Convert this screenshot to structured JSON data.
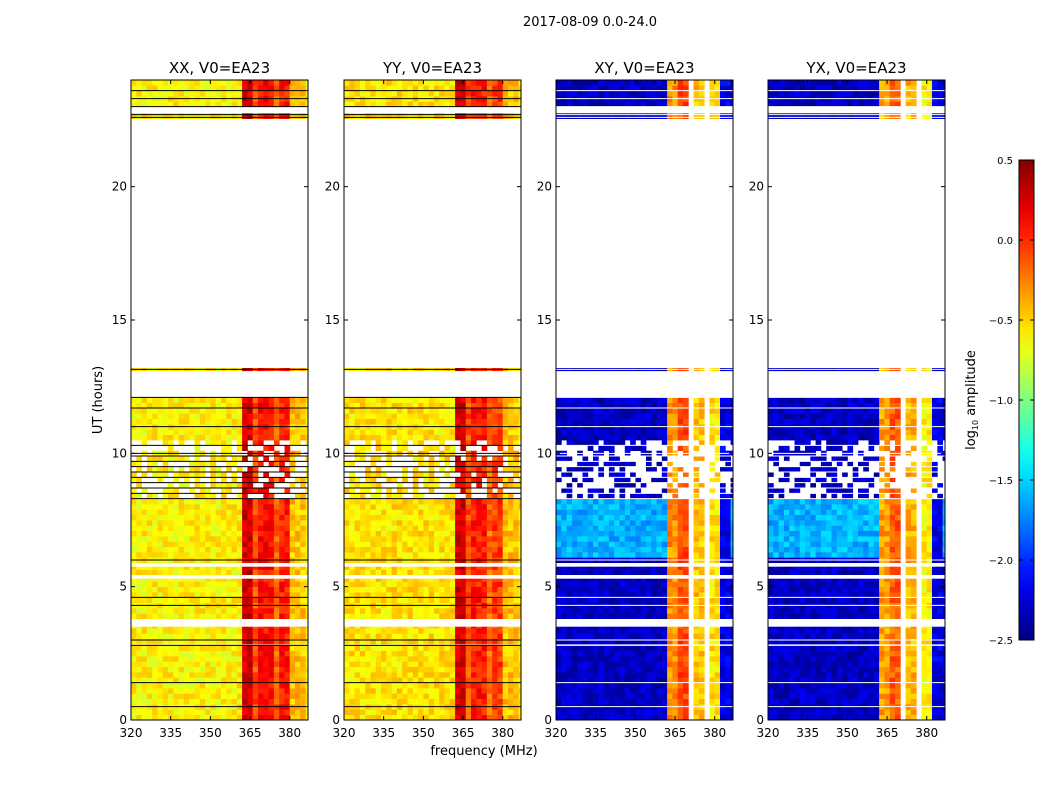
{
  "chart_data": {
    "type": "heatmap",
    "title": "2017-08-09 0.0-24.0",
    "xlabel": "frequency (MHz)",
    "ylabel": "UT (hours)",
    "xlim": [
      320,
      386.9
    ],
    "ylim": [
      0,
      24
    ],
    "xticks": [
      320,
      335,
      350,
      365,
      380
    ],
    "yticks": [
      0,
      5,
      10,
      15,
      20
    ],
    "colormap": "jet",
    "colorbar": {
      "label_main": "log",
      "label_sub": "10",
      "label_rest": " amplitude",
      "range": [
        -2.5,
        0.5
      ],
      "ticks": [
        "0.5",
        "0.0",
        "−0.5",
        "−1.0",
        "−1.5",
        "−2.0",
        "−2.5"
      ],
      "tick_values": [
        0.5,
        0.0,
        -0.5,
        -1.0,
        -1.5,
        -2.0,
        -2.5
      ]
    },
    "time_segments_hours": [
      [
        0,
        2.8
      ],
      [
        2.85,
        3.5
      ],
      [
        3.8,
        5.3
      ],
      [
        5.45,
        5.75
      ],
      [
        5.9,
        12.1
      ],
      [
        13.1,
        13.2
      ],
      [
        22.55,
        22.75
      ],
      [
        23.0,
        24.0
      ]
    ],
    "flag_line_hours": [
      0.5,
      1.4,
      2.8,
      3.0,
      4.3,
      4.6,
      6.0,
      8.3,
      8.5,
      8.7,
      8.9,
      9.1,
      9.3,
      9.5,
      9.7,
      9.9,
      10.0,
      10.3,
      11.0,
      11.7,
      12.1,
      13.15,
      22.6,
      22.7,
      23.0,
      23.3,
      23.6
    ],
    "panels": [
      {
        "title": "XX, V0=EA23",
        "baseline": -0.6,
        "mid_baseline": -0.6,
        "bands": [
          [
            362,
            367,
            0.25
          ],
          [
            367,
            368.5,
            -0.1
          ],
          [
            368.5,
            374,
            0.1
          ],
          [
            374,
            377,
            -0.15
          ],
          [
            377,
            381,
            0.05
          ],
          [
            381,
            387,
            -0.45
          ]
        ]
      },
      {
        "title": "YY, V0=EA23",
        "baseline": -0.55,
        "mid_baseline": -0.55,
        "bands": [
          [
            362,
            367,
            0.25
          ],
          [
            367,
            368.5,
            -0.1
          ],
          [
            368.5,
            374,
            0.05
          ],
          [
            374,
            377,
            -0.2
          ],
          [
            377,
            381,
            -0.05
          ],
          [
            381,
            387,
            -0.45
          ]
        ]
      },
      {
        "title": "XY, V0=EA23",
        "baseline": -2.3,
        "mid_baseline": -1.6,
        "bands": [
          [
            362,
            366,
            -0.3
          ],
          [
            366,
            367,
            null
          ],
          [
            367,
            371,
            -0.1
          ],
          [
            371,
            372,
            null
          ],
          [
            372,
            377,
            -0.45
          ],
          [
            377,
            378,
            null
          ],
          [
            378,
            381.5,
            -0.55
          ],
          [
            381.5,
            387,
            -2.2
          ]
        ]
      },
      {
        "title": "YX, V0=EA23",
        "baseline": -2.3,
        "mid_baseline": -1.6,
        "bands": [
          [
            362,
            366,
            -0.35
          ],
          [
            366,
            367,
            null
          ],
          [
            367,
            371,
            -0.15
          ],
          [
            371,
            372,
            null
          ],
          [
            372,
            377,
            -0.4
          ],
          [
            377,
            378,
            null
          ],
          [
            378,
            381.5,
            -0.6
          ],
          [
            381.5,
            387,
            -2.2
          ]
        ]
      }
    ]
  }
}
